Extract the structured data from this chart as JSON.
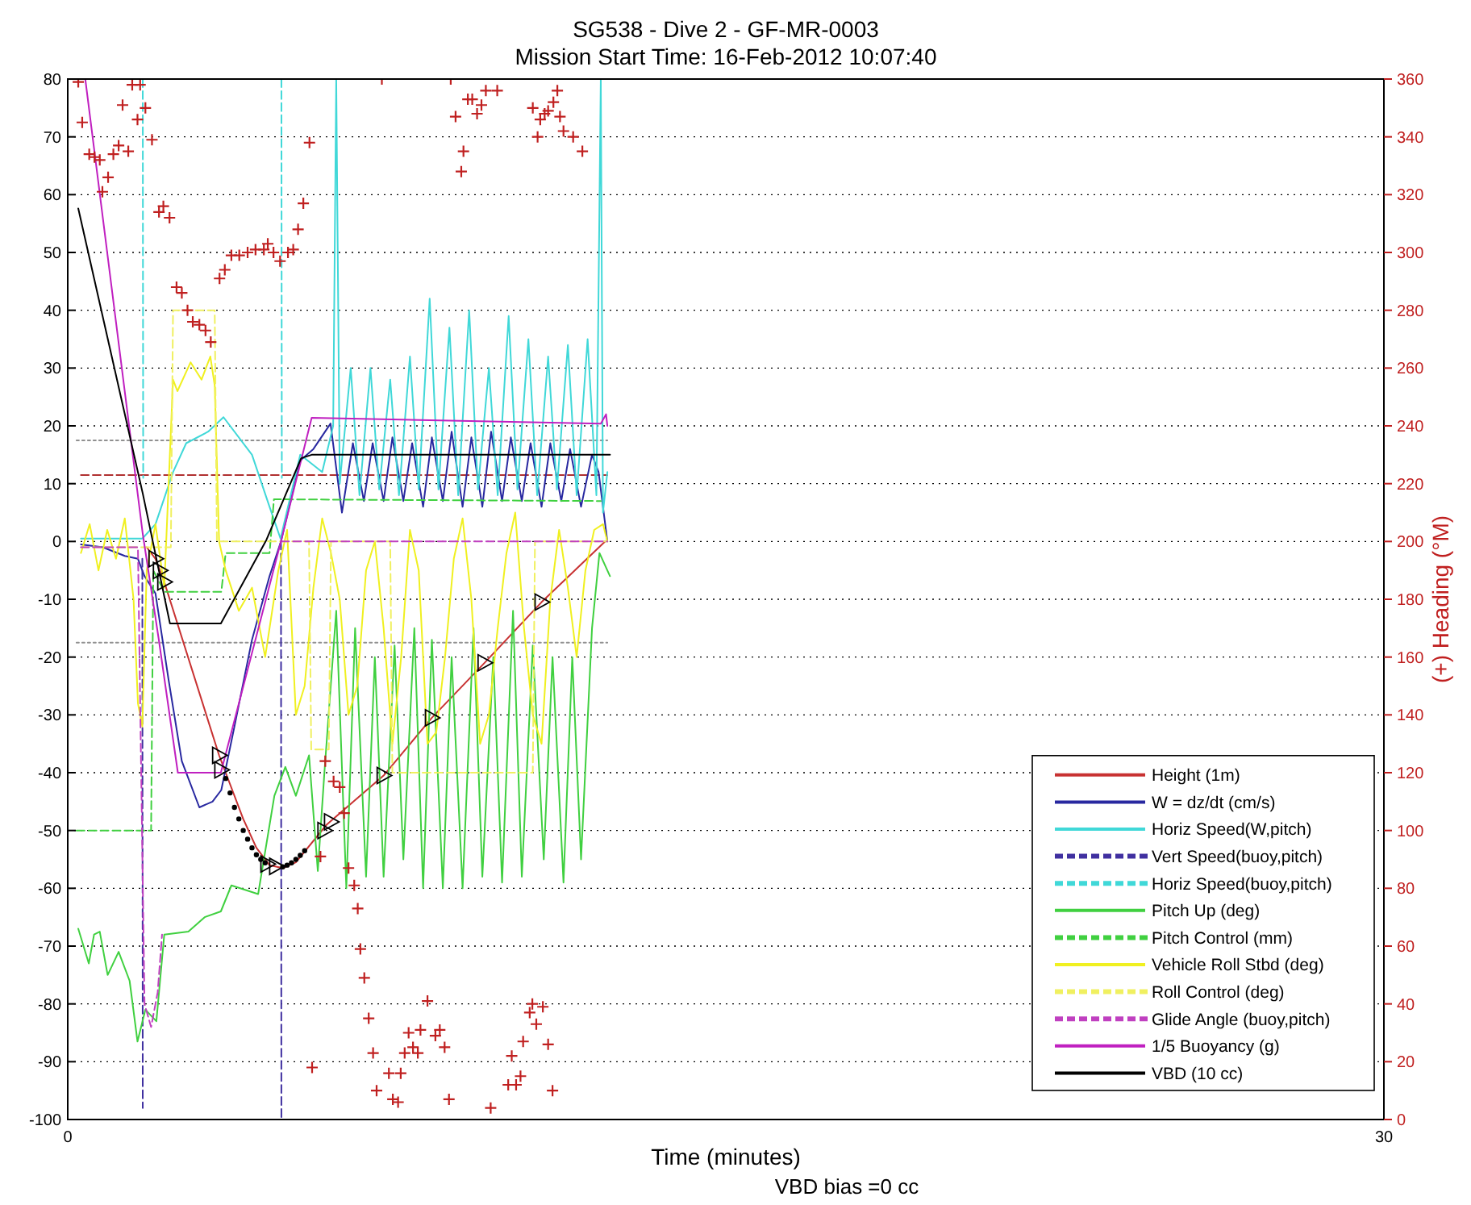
{
  "chart_data": {
    "type": "line",
    "title": "SG538 - Dive 2 - GF-MR-0003",
    "subtitle": "Mission Start Time: 16-Feb-2012 10:07:40",
    "xlabel": "Time (minutes)",
    "y2label": "(+) Heading (°M)",
    "annotations": [
      "VBD bias =0 cc"
    ],
    "xlim": [
      0,
      30
    ],
    "xticks": [
      0,
      30
    ],
    "ylim": [
      -100,
      80
    ],
    "yticks": [
      -100,
      -90,
      -80,
      -70,
      -60,
      -50,
      -40,
      -30,
      -20,
      -10,
      0,
      10,
      20,
      30,
      40,
      50,
      60,
      70,
      80
    ],
    "y2lim": [
      0,
      360
    ],
    "y2ticks": [
      0,
      20,
      40,
      60,
      80,
      100,
      120,
      140,
      160,
      180,
      200,
      220,
      240,
      260,
      280,
      300,
      320,
      340,
      360
    ],
    "grid": "y",
    "legend": "bottom right",
    "series": [
      {
        "color": "#b03030",
        "line_style": "dashed",
        "x": [
          0.3,
          12.3
        ],
        "values": [
          11.5,
          11.5
        ]
      },
      {
        "color": "#909090",
        "line_style": "dotted",
        "x": [
          0.2,
          12.3
        ],
        "values": [
          17.5,
          17.5
        ]
      },
      {
        "color": "#909090",
        "line_style": "dotted",
        "x": [
          0.2,
          12.3
        ],
        "values": [
          -17.5,
          -17.5
        ]
      },
      {
        "name": "Height (1m)",
        "color": "#c83232",
        "x": [
          1.8,
          2.0,
          2.2,
          3.45,
          3.6,
          4.0,
          4.3,
          4.6,
          4.9,
          5.2,
          5.9,
          7.2,
          8.3,
          9.5,
          10.8,
          12.25
        ],
        "values": [
          -1,
          -3,
          -7,
          -37,
          -40,
          -48,
          -53,
          -56,
          -56.5,
          -55.5,
          -49,
          -40.5,
          -30.5,
          -21,
          -10.5,
          0
        ]
      },
      {
        "name": "W = dz/dt (cm/s)",
        "color": "#2828a0",
        "x": [
          0.3,
          0.8,
          1.3,
          1.6,
          1.75,
          2.0,
          2.3,
          2.6,
          3.0,
          3.3,
          3.5,
          3.8,
          4.2,
          4.6,
          4.86,
          5.3,
          5.6,
          5.99,
          6.25,
          6.5,
          6.75,
          6.95,
          7.2,
          7.4,
          7.65,
          7.85,
          8.1,
          8.3,
          8.55,
          8.75,
          9.0,
          9.2,
          9.45,
          9.65,
          9.9,
          10.1,
          10.35,
          10.55,
          10.8,
          11.0,
          11.25,
          11.45,
          11.7,
          11.95,
          12.1,
          12.25,
          12.3
        ],
        "values": [
          -0.5,
          -1,
          -2.5,
          -3,
          -6,
          -9,
          -24,
          -38,
          -46,
          -45,
          -43,
          -32,
          -17,
          -6,
          0,
          14,
          16,
          20.4,
          5,
          17,
          7,
          17,
          7,
          18,
          7,
          17,
          6,
          18,
          7,
          19,
          6,
          18,
          6,
          19,
          7,
          18,
          7,
          17,
          6,
          17,
          7,
          16,
          6,
          15,
          12,
          3,
          0
        ]
      },
      {
        "name": "Horiz Speed(W,pitch)",
        "color": "#40d8d8",
        "x": [
          0.3,
          1.0,
          1.7,
          2.0,
          2.4,
          2.7,
          3.2,
          3.55,
          4.2,
          4.6,
          4.85,
          5.3,
          5.8,
          6.05,
          6.12,
          6.2,
          6.45,
          6.65,
          6.9,
          7.1,
          7.35,
          7.55,
          7.8,
          8.0,
          8.25,
          8.45,
          8.7,
          8.9,
          9.15,
          9.35,
          9.6,
          9.8,
          10.05,
          10.25,
          10.5,
          10.7,
          10.95,
          11.15,
          11.4,
          11.6,
          11.85,
          12.05,
          12.15,
          12.2,
          12.3
        ],
        "values": [
          0.5,
          0.5,
          0.5,
          3,
          12,
          17,
          19,
          21.5,
          15,
          6,
          0.5,
          15,
          12,
          20,
          80,
          10,
          30,
          8,
          30,
          9,
          28,
          8,
          32,
          9,
          42,
          9,
          37,
          8,
          40,
          9,
          30,
          8,
          39,
          9,
          35,
          8,
          32,
          9,
          34,
          8,
          35,
          8,
          80,
          5,
          12
        ]
      },
      {
        "name": "Vert Speed(buoy,pitch)",
        "color": "#4030a0",
        "line_style": "dashed",
        "x": [
          1.7,
          1.71,
          1.72,
          4.86,
          4.87
        ],
        "values": [
          -3,
          -98,
          null,
          0,
          -100
        ]
      },
      {
        "name": "Horiz Speed(buoy,pitch)",
        "color": "#40d8d8",
        "line_style": "dashed",
        "x": [
          1.71,
          1.72,
          1.73,
          4.87,
          4.88
        ],
        "values": [
          80,
          11,
          null,
          80,
          11
        ]
      },
      {
        "name": "Pitch Up (deg)",
        "color": "#40d040",
        "x": [
          0.24,
          0.48,
          0.6,
          0.73,
          0.91,
          1.16,
          1.41,
          1.59,
          1.77,
          2.02,
          2.2,
          2.75,
          3.12,
          3.49,
          3.73,
          4.34,
          4.71,
          4.96,
          5.2,
          5.5,
          5.7,
          5.85,
          6.12,
          6.35,
          6.55,
          6.8,
          7.0,
          7.2,
          7.45,
          7.65,
          7.9,
          8.1,
          8.3,
          8.55,
          8.75,
          9.0,
          9.25,
          9.45,
          9.7,
          9.9,
          10.15,
          10.35,
          10.6,
          10.85,
          11.05,
          11.3,
          11.5,
          11.7,
          11.95,
          12.12,
          12.36
        ],
        "values": [
          -67,
          -73,
          -68,
          -67.5,
          -75,
          -71,
          -76,
          -86.5,
          -81,
          -83,
          -68,
          -67.5,
          -65,
          -64,
          -59.5,
          -61,
          -44,
          -39,
          -44,
          -37,
          -57,
          -40,
          -12,
          -60,
          -15,
          -58,
          -20,
          -58,
          -18,
          -55,
          -15,
          -60,
          -17,
          -60,
          -20,
          -60,
          -15,
          -58,
          -20,
          -59,
          -12,
          -58,
          -18,
          -55,
          -20,
          -59,
          -20,
          -55,
          -15,
          -2,
          -6
        ]
      },
      {
        "name": "Pitch Control (mm)",
        "color": "#40d040",
        "line_style": "dashed",
        "x": [
          0.2,
          1.9,
          1.95,
          2.2,
          3.5,
          3.6,
          4.6,
          4.7,
          12.15
        ],
        "values": [
          -50,
          -50,
          -5,
          -8.7,
          -8.7,
          -2,
          -2,
          7.3,
          7
        ]
      },
      {
        "name": "Vehicle Roll Stbd (deg)",
        "color": "#f0f020",
        "x": [
          0.3,
          0.5,
          0.7,
          0.9,
          1.1,
          1.3,
          1.5,
          1.6,
          1.7,
          1.8,
          2.0,
          2.2,
          2.4,
          2.5,
          2.8,
          3.05,
          3.25,
          3.35,
          3.45,
          3.6,
          3.9,
          4.2,
          4.5,
          4.8,
          5.0,
          5.2,
          5.4,
          5.6,
          5.8,
          6.0,
          6.2,
          6.4,
          6.6,
          6.8,
          7.0,
          7.2,
          7.4,
          7.6,
          7.8,
          8.0,
          8.2,
          8.4,
          8.6,
          8.8,
          9.0,
          9.2,
          9.4,
          9.6,
          9.8,
          10.0,
          10.2,
          10.4,
          10.6,
          10.8,
          11.0,
          11.2,
          11.4,
          11.6,
          11.8,
          12.0,
          12.2,
          12.3
        ],
        "values": [
          -2,
          3,
          -5,
          2,
          -3,
          4,
          -10,
          -28,
          -32,
          -5,
          3,
          -8,
          28,
          26,
          31,
          28,
          32,
          27,
          0,
          -5,
          -12,
          -8,
          -20,
          -5,
          2,
          -30,
          -25,
          -8,
          4,
          -2,
          -10,
          -30,
          -25,
          -5,
          0,
          -15,
          -35,
          -20,
          2,
          -5,
          -35,
          -33,
          -20,
          -3,
          4,
          -10,
          -35,
          -30,
          -15,
          -2,
          5,
          -15,
          -30,
          -35,
          -10,
          2,
          -8,
          -20,
          -5,
          2,
          3,
          0
        ]
      },
      {
        "name": "Roll Control (deg)",
        "color": "#f0f060",
        "line_style": "dashed",
        "x": [
          0.3,
          2.35,
          2.4,
          3.35,
          3.4,
          5.5,
          5.55,
          5.95,
          6.0,
          7.35,
          7.4,
          10.6,
          10.65,
          12.3
        ],
        "values": [
          -1,
          -1,
          40,
          40,
          0,
          0,
          -36,
          -36,
          0,
          0,
          -40,
          -40,
          0,
          0
        ]
      },
      {
        "name": "Glide Angle (buoy,pitch)",
        "color": "#c040c0",
        "line_style": "dashed",
        "x": [
          0.3,
          1.6,
          1.75,
          1.9,
          2.05,
          2.15,
          2.16,
          4.86,
          12.3
        ],
        "values": [
          -1,
          -1,
          -80,
          -84,
          -78,
          -68,
          null,
          0,
          0
        ]
      },
      {
        "name": "1/5 Buoyancy (g)",
        "color": "#c020c0",
        "x": [
          0.4,
          1.71,
          2.07,
          2.51,
          3.49,
          4.86,
          5.56,
          12.15,
          12.27,
          12.3
        ],
        "values": [
          80,
          1.3,
          -16.7,
          -40,
          -40,
          0,
          21.4,
          20.4,
          22,
          20
        ]
      },
      {
        "name": "VBD (10 cc)",
        "color": "#000000",
        "x": [
          0.24,
          1.71,
          2.33,
          3.49,
          4.53,
          5.32,
          5.56,
          12.36
        ],
        "values": [
          57.6,
          8.3,
          -14.2,
          -14.2,
          0.3,
          14.4,
          15,
          15
        ]
      },
      {
        "type": "scatter",
        "marker": "triangle",
        "color": "#000000",
        "x": [
          2.0,
          2.1,
          2.2,
          3.45,
          3.5,
          4.55,
          4.75,
          5.85,
          6.0,
          7.2,
          8.3,
          9.5,
          10.8
        ],
        "values": [
          -3,
          -5,
          -7,
          -37,
          -39.5,
          -55.8,
          -56.2,
          -50,
          -48.5,
          -40.5,
          -30.5,
          -21,
          -10.5
        ]
      },
      {
        "type": "scatter",
        "marker": "circle",
        "color": "#000000",
        "x": [
          3.6,
          3.7,
          3.8,
          3.9,
          4.0,
          4.1,
          4.2,
          4.3,
          4.4,
          4.5,
          4.9,
          5.0,
          5.1,
          5.2,
          5.3,
          5.4
        ],
        "values": [
          -41,
          -43.5,
          -46,
          -48,
          -50,
          -51.5,
          -53,
          -54.2,
          -55,
          -55.6,
          -56.3,
          -56,
          -55.6,
          -55,
          -54.3,
          -53.5
        ]
      },
      {
        "type": "scatter",
        "marker": "cross",
        "color": "#c02020",
        "axis": "y2",
        "x": [
          0.24,
          0.33,
          0.49,
          0.61,
          0.73,
          0.79,
          0.92,
          1.04,
          1.16,
          1.25,
          1.38,
          1.47,
          1.59,
          1.65,
          1.77,
          1.92,
          2.08,
          2.18,
          2.32,
          2.48,
          2.6,
          2.73,
          2.85,
          3.0,
          3.14,
          3.26,
          3.46,
          3.58,
          3.73,
          3.91,
          4.1,
          4.28,
          4.47,
          4.56,
          4.69,
          4.84,
          5.02,
          5.14,
          5.25,
          5.37,
          5.51,
          5.57,
          5.76,
          5.87,
          6.06,
          6.2,
          6.3,
          6.4,
          6.53,
          6.61,
          6.67,
          6.76,
          6.86,
          6.96,
          7.04,
          7.16,
          7.32,
          7.41,
          7.53,
          7.59,
          7.68,
          7.77,
          7.87,
          7.98,
          8.04,
          8.2,
          8.38,
          8.48,
          8.59,
          8.69,
          8.73,
          8.84,
          8.97,
          9.02,
          9.12,
          9.22,
          9.33,
          9.43,
          9.53,
          9.64,
          9.79,
          10.04,
          10.12,
          10.22,
          10.32,
          10.38,
          10.53,
          10.59,
          10.6,
          10.68,
          10.71,
          10.77,
          10.83,
          10.87,
          10.95,
          10.95,
          11.05,
          11.07,
          11.16,
          11.22,
          11.3,
          11.52,
          11.73
        ],
        "values": [
          359,
          345,
          334,
          333,
          332,
          321,
          326,
          334,
          337,
          351,
          335,
          358,
          346,
          358,
          350,
          339,
          314,
          316,
          312,
          288,
          286,
          280,
          276,
          275,
          273,
          269,
          291,
          294,
          299,
          299,
          300,
          301,
          301,
          303,
          300,
          297,
          300,
          301,
          308,
          317,
          338,
          18,
          91,
          124,
          117,
          115,
          106,
          87,
          81,
          73,
          59,
          49,
          35,
          23,
          10,
          360,
          16,
          7,
          6,
          16,
          23,
          30,
          25,
          23,
          31,
          41,
          29,
          31,
          25,
          7,
          360,
          347,
          328,
          335,
          353,
          353,
          348,
          351,
          356,
          4,
          356,
          12,
          22,
          12,
          15,
          27,
          37,
          40,
          350,
          33,
          340,
          346,
          39,
          348,
          349,
          26,
          10,
          352,
          356,
          347,
          342,
          340,
          335
        ]
      }
    ]
  }
}
